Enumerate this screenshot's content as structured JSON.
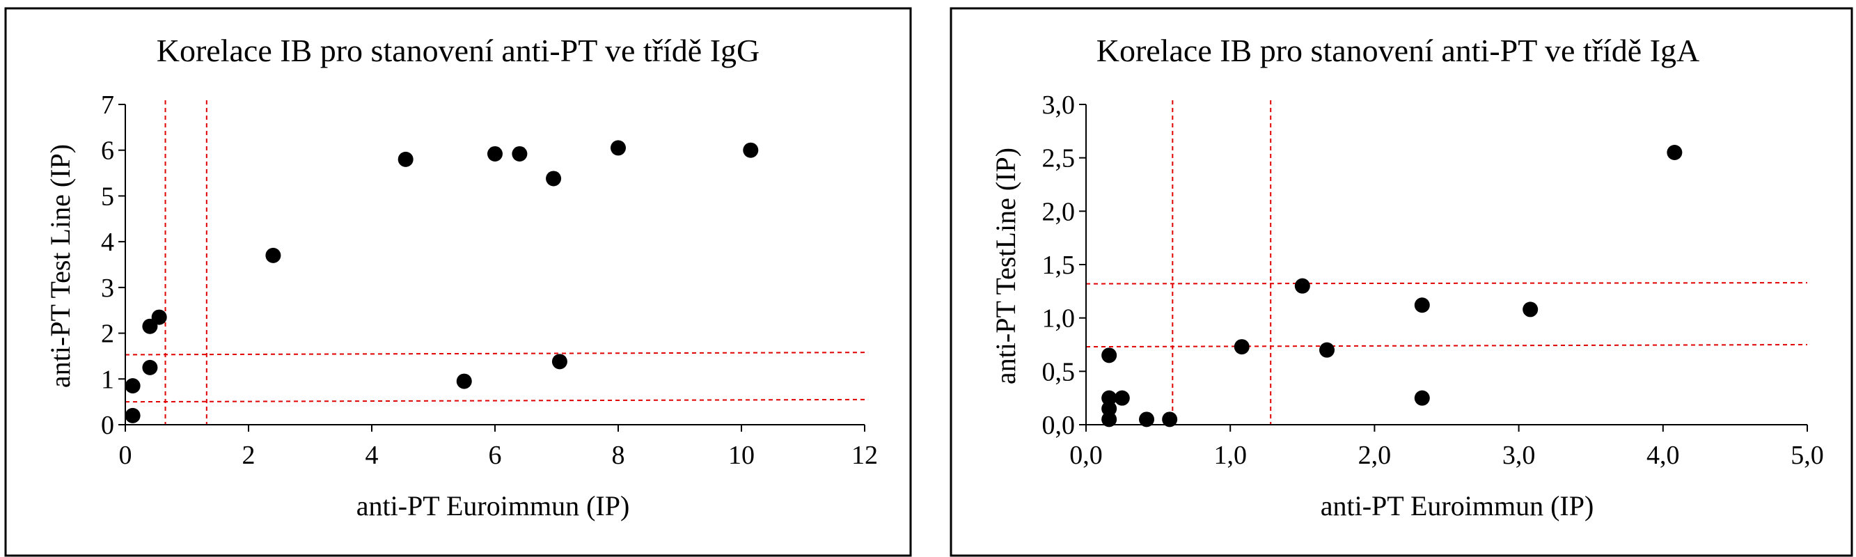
{
  "chart_data": [
    {
      "type": "scatter",
      "title": "Korelace IB pro stanovení anti-PT ve třídě IgG",
      "xlabel": "anti-PT Euroimmun (IP)",
      "ylabel": "anti-PT Test Line (IP)",
      "xlim": [
        0,
        12
      ],
      "ylim": [
        0,
        7
      ],
      "xticks": [
        0,
        2,
        4,
        6,
        8,
        10,
        12
      ],
      "yticks": [
        0,
        1,
        2,
        3,
        4,
        5,
        6,
        7
      ],
      "xtick_labels": [
        "0",
        "2",
        "4",
        "6",
        "8",
        "10",
        "12"
      ],
      "ytick_labels": [
        "0",
        "1",
        "2",
        "3",
        "4",
        "5",
        "6",
        "7"
      ],
      "grid": false,
      "point_color": "#000000",
      "reference_line_color": "#e00000",
      "points": [
        {
          "x": 0.12,
          "y": 0.2
        },
        {
          "x": 0.12,
          "y": 0.85
        },
        {
          "x": 0.4,
          "y": 1.25
        },
        {
          "x": 0.4,
          "y": 2.15
        },
        {
          "x": 0.55,
          "y": 2.35
        },
        {
          "x": 2.4,
          "y": 3.7
        },
        {
          "x": 4.55,
          "y": 5.8
        },
        {
          "x": 5.5,
          "y": 0.95
        },
        {
          "x": 6.0,
          "y": 5.92
        },
        {
          "x": 6.4,
          "y": 5.92
        },
        {
          "x": 6.95,
          "y": 5.38
        },
        {
          "x": 7.05,
          "y": 1.38
        },
        {
          "x": 8.0,
          "y": 6.05
        },
        {
          "x": 10.15,
          "y": 6.0
        }
      ],
      "vertical_reference_lines": [
        0.65,
        1.32
      ],
      "horizontal_reference_lines": [
        {
          "y_start": 1.53,
          "y_end": 1.58
        },
        {
          "y_start": 0.5,
          "y_end": 0.55
        }
      ]
    },
    {
      "type": "scatter",
      "title": "Korelace IB pro stanovení anti-PT ve třídě IgA",
      "xlabel": "anti-PT Euroimmun (IP)",
      "ylabel": "anti-PT TestLine (IP)",
      "xlim": [
        0,
        5
      ],
      "ylim": [
        0,
        3
      ],
      "xticks": [
        0,
        1,
        2,
        3,
        4,
        5
      ],
      "yticks": [
        0,
        0.5,
        1,
        1.5,
        2,
        2.5,
        3
      ],
      "xtick_labels": [
        "0,0",
        "1,0",
        "2,0",
        "3,0",
        "4,0",
        "5,0"
      ],
      "ytick_labels": [
        "0,0",
        "0,5",
        "1,0",
        "1,5",
        "2,0",
        "2,5",
        "3,0"
      ],
      "grid": false,
      "point_color": "#000000",
      "reference_line_color": "#e00000",
      "points": [
        {
          "x": 0.16,
          "y": 0.05
        },
        {
          "x": 0.16,
          "y": 0.15
        },
        {
          "x": 0.16,
          "y": 0.25
        },
        {
          "x": 0.16,
          "y": 0.65
        },
        {
          "x": 0.25,
          "y": 0.25
        },
        {
          "x": 0.42,
          "y": 0.05
        },
        {
          "x": 0.58,
          "y": 0.05
        },
        {
          "x": 1.08,
          "y": 0.73
        },
        {
          "x": 1.5,
          "y": 1.3
        },
        {
          "x": 1.67,
          "y": 0.7
        },
        {
          "x": 2.33,
          "y": 0.25
        },
        {
          "x": 2.33,
          "y": 1.12
        },
        {
          "x": 3.08,
          "y": 1.08
        },
        {
          "x": 4.08,
          "y": 2.55
        }
      ],
      "vertical_reference_lines": [
        0.6,
        1.28
      ],
      "horizontal_reference_lines": [
        {
          "y_start": 1.32,
          "y_end": 1.33
        },
        {
          "y_start": 0.73,
          "y_end": 0.75
        }
      ]
    }
  ]
}
